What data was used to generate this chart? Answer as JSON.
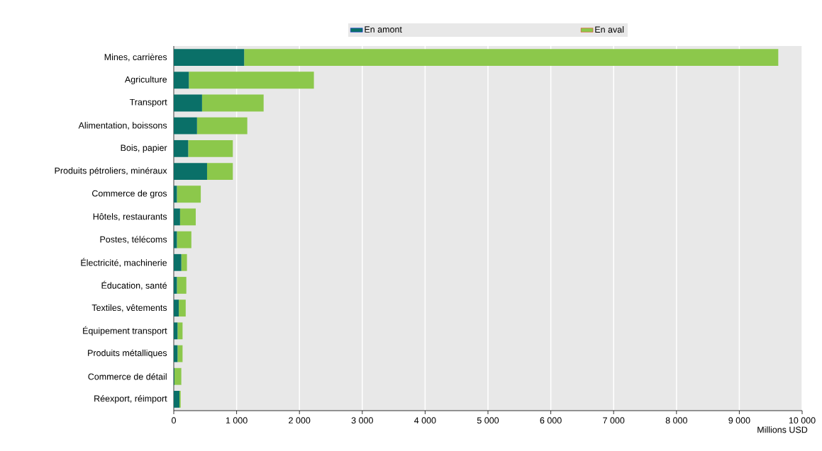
{
  "chart_data": {
    "type": "bar",
    "orientation": "horizontal",
    "stacked": true,
    "xlabel": "Millions USD",
    "categories": [
      "Mines, carrières",
      "Agriculture",
      "Transport",
      "Alimentation, boissons",
      "Bois, papier",
      "Produits pétroliers, minéraux",
      "Commerce de gros",
      "Hôtels, restaurants",
      "Postes, télécoms",
      "Électricité, machinerie",
      "Éducation, santé",
      "Textiles, vêtements",
      "Équipement transport",
      "Produits métalliques",
      "Commerce de détail",
      "Réexport, réimport"
    ],
    "series": [
      {
        "name": "En amont",
        "color": "#0a7068",
        "values": [
          1120,
          240,
          450,
          370,
          230,
          530,
          50,
          100,
          50,
          120,
          50,
          80,
          60,
          60,
          10,
          90
        ]
      },
      {
        "name": "En aval",
        "color": "#8cc84b",
        "values": [
          8500,
          1990,
          980,
          800,
          710,
          410,
          380,
          250,
          230,
          90,
          150,
          110,
          80,
          80,
          110,
          20
        ]
      }
    ],
    "xlim": [
      0,
      10000
    ],
    "xticks": [
      0,
      {
        "value": 1000,
        "label": "1 000"
      },
      {
        "value": 2000,
        "label": "2 000"
      },
      {
        "value": 3000,
        "label": "3 000"
      },
      {
        "value": 4000,
        "label": "4 000"
      },
      {
        "value": 5000,
        "label": "5 000"
      },
      {
        "value": 6000,
        "label": "6 000"
      },
      {
        "value": 7000,
        "label": "7 000"
      },
      {
        "value": 8000,
        "label": "8 000"
      },
      {
        "value": 9000,
        "label": "9 000"
      },
      {
        "value": 10000,
        "label": "10 000"
      }
    ],
    "grid": "x",
    "legend": "top"
  }
}
